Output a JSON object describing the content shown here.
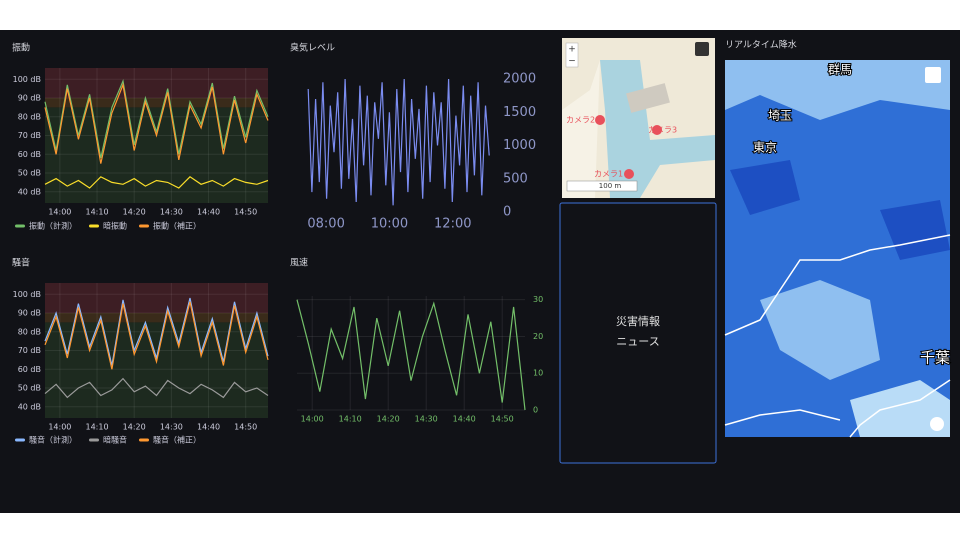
{
  "chart_data": [
    {
      "type": "line",
      "title": "振動",
      "x": [
        836,
        839,
        842,
        845,
        848,
        851,
        854,
        857,
        860,
        863,
        866,
        869,
        872,
        875,
        878,
        881,
        884,
        887,
        890,
        893,
        896
      ],
      "xlim": [
        836,
        896
      ],
      "xticks": [
        {
          "value": 840,
          "label": "14:00"
        },
        {
          "value": 850,
          "label": "14:10"
        },
        {
          "value": 860,
          "label": "14:20"
        },
        {
          "value": 870,
          "label": "14:30"
        },
        {
          "value": 880,
          "label": "14:40"
        },
        {
          "value": 890,
          "label": "14:50"
        }
      ],
      "ylim": [
        34,
        106
      ],
      "yticks": [
        {
          "value": 40,
          "label": "40 dB"
        },
        {
          "value": 50,
          "label": "50 dB"
        },
        {
          "value": 60,
          "label": "60 dB"
        },
        {
          "value": 70,
          "label": "70 dB"
        },
        {
          "value": 80,
          "label": "80 dB"
        },
        {
          "value": 90,
          "label": "90 dB"
        },
        {
          "value": 100,
          "label": "100 dB"
        }
      ],
      "grid": true,
      "legend": "bottom",
      "base_color": "#1d2a1f",
      "thresholds": [
        {
          "value": 85,
          "color": "#3a2b1a"
        },
        {
          "value": 90,
          "color": "#3d1e24"
        }
      ],
      "series": [
        {
          "name": "振動（計測）",
          "color": "#73bf69",
          "values": [
            88,
            62,
            97,
            70,
            92,
            58,
            85,
            99,
            65,
            90,
            72,
            95,
            60,
            88,
            76,
            98,
            63,
            91,
            69,
            94,
            80
          ]
        },
        {
          "name": "暗振動",
          "color": "#fade2a",
          "values": [
            44,
            47,
            43,
            46,
            42,
            48,
            45,
            44,
            47,
            43,
            46,
            45,
            42,
            48,
            44,
            46,
            43,
            47,
            45,
            44,
            46
          ]
        },
        {
          "name": "振動（補正）",
          "color": "#ff9830",
          "values": [
            85,
            60,
            95,
            68,
            90,
            55,
            82,
            97,
            62,
            88,
            70,
            93,
            57,
            86,
            74,
            96,
            60,
            89,
            66,
            92,
            78
          ]
        }
      ]
    },
    {
      "type": "line",
      "title": "臭気レベル",
      "x": [
        446,
        453,
        460,
        467,
        474,
        481,
        488,
        495,
        502,
        509,
        516,
        523,
        530,
        537,
        544,
        551,
        558,
        565,
        572,
        579,
        586,
        593,
        600,
        607,
        614,
        621,
        628,
        635,
        642,
        649,
        656,
        663,
        670,
        677,
        684,
        691,
        698,
        705,
        712,
        719,
        726,
        733,
        740,
        747,
        754,
        761,
        768,
        775,
        782,
        789
      ],
      "xlim": [
        440,
        800
      ],
      "xticks": [
        {
          "value": 480,
          "label": "08:00"
        },
        {
          "value": 600,
          "label": "10:00"
        },
        {
          "value": 720,
          "label": "12:00"
        }
      ],
      "ylim": [
        0,
        2000
      ],
      "yticks": [
        0,
        500,
        1000,
        1500,
        2000
      ],
      "y_axis_side": "right",
      "grid": false,
      "color": "#7b8cf0",
      "tick_color": "#8f97c8",
      "values": [
        1850,
        300,
        1700,
        450,
        1950,
        200,
        1600,
        900,
        1800,
        350,
        2000,
        500,
        1400,
        150,
        1900,
        700,
        1750,
        250,
        1650,
        1100,
        1950,
        400,
        1500,
        100,
        1850,
        600,
        2000,
        300,
        1700,
        800,
        1550,
        200,
        1900,
        450,
        1800,
        1000,
        1650,
        350,
        2000,
        150,
        1450,
        700,
        1900,
        300,
        1750,
        550,
        1950,
        250,
        1600,
        850
      ]
    },
    {
      "type": "line",
      "title": "騒音",
      "x": [
        836,
        839,
        842,
        845,
        848,
        851,
        854,
        857,
        860,
        863,
        866,
        869,
        872,
        875,
        878,
        881,
        884,
        887,
        890,
        893,
        896
      ],
      "xlim": [
        836,
        896
      ],
      "xticks": [
        {
          "value": 840,
          "label": "14:00"
        },
        {
          "value": 850,
          "label": "14:10"
        },
        {
          "value": 860,
          "label": "14:20"
        },
        {
          "value": 870,
          "label": "14:30"
        },
        {
          "value": 880,
          "label": "14:40"
        },
        {
          "value": 890,
          "label": "14:50"
        }
      ],
      "ylim": [
        34,
        106
      ],
      "yticks": [
        {
          "value": 40,
          "label": "40 dB"
        },
        {
          "value": 50,
          "label": "50 dB"
        },
        {
          "value": 60,
          "label": "60 dB"
        },
        {
          "value": 70,
          "label": "70 dB"
        },
        {
          "value": 80,
          "label": "80 dB"
        },
        {
          "value": 90,
          "label": "90 dB"
        },
        {
          "value": 100,
          "label": "100 dB"
        }
      ],
      "grid": true,
      "legend": "bottom",
      "base_color": "#1d2a1f",
      "thresholds": [
        {
          "value": 85,
          "color": "#3a2b1a"
        },
        {
          "value": 90,
          "color": "#3d1e24"
        }
      ],
      "series": [
        {
          "name": "騒音（計測）",
          "color": "#8ab8ff",
          "values": [
            75,
            90,
            68,
            95,
            72,
            88,
            62,
            97,
            70,
            85,
            66,
            93,
            74,
            98,
            69,
            87,
            64,
            96,
            71,
            90,
            67
          ]
        },
        {
          "name": "暗騒音",
          "color": "#9a9a9a",
          "values": [
            47,
            52,
            45,
            50,
            53,
            46,
            49,
            55,
            48,
            51,
            46,
            54,
            50,
            47,
            52,
            49,
            45,
            53,
            48,
            50,
            46
          ]
        },
        {
          "name": "騒音（補正）",
          "color": "#ff9830",
          "values": [
            73,
            88,
            66,
            93,
            70,
            86,
            60,
            95,
            68,
            83,
            64,
            91,
            72,
            96,
            67,
            85,
            62,
            94,
            69,
            88,
            65
          ]
        }
      ]
    },
    {
      "type": "line",
      "title": "風速",
      "x": [
        836,
        839,
        842,
        845,
        848,
        851,
        854,
        857,
        860,
        863,
        866,
        869,
        872,
        875,
        878,
        881,
        884,
        887,
        890,
        893,
        896
      ],
      "xlim": [
        836,
        896
      ],
      "xticks": [
        {
          "value": 840,
          "label": "14:00"
        },
        {
          "value": 850,
          "label": "14:10"
        },
        {
          "value": 860,
          "label": "14:20"
        },
        {
          "value": 870,
          "label": "14:30"
        },
        {
          "value": 880,
          "label": "14:40"
        },
        {
          "value": 890,
          "label": "14:50"
        }
      ],
      "ylim": [
        0,
        31
      ],
      "yticks": [
        0,
        10,
        20,
        30
      ],
      "y_axis_side": "right",
      "grid": true,
      "color": "#73bf69",
      "tick_color": "#73bf69",
      "values": [
        30,
        18,
        5,
        22,
        14,
        28,
        3,
        25,
        12,
        27,
        8,
        20,
        29,
        16,
        4,
        26,
        10,
        24,
        2,
        28,
        0
      ]
    }
  ],
  "map": {
    "camera_labels": [
      "カメラ1",
      "カメラ2",
      "カメラ3"
    ],
    "scale": "100 m",
    "zoom_in": "+",
    "zoom_out": "−"
  },
  "news": {
    "lines": [
      "災害情報",
      "ニュース"
    ]
  },
  "rain": {
    "title": "リアルタイム降水",
    "places": [
      "群馬",
      "埼玉",
      "東京",
      "千葉"
    ]
  }
}
